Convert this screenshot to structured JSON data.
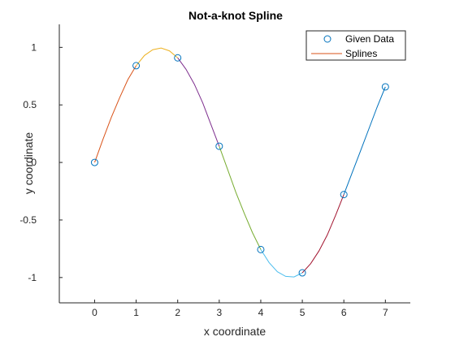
{
  "chart_data": {
    "type": "line",
    "title": "Not-a-knot Spline",
    "xlabel": "x coordinate",
    "ylabel": "y coordinate",
    "xlim": [
      -0.85,
      7.6
    ],
    "ylim": [
      -1.22,
      1.2
    ],
    "xticks": [
      0,
      1,
      2,
      3,
      4,
      5,
      6,
      7
    ],
    "yticks": [
      -1,
      -0.5,
      0,
      0.5,
      1
    ],
    "xtick_labels": [
      "0",
      "1",
      "2",
      "3",
      "4",
      "5",
      "6",
      "7"
    ],
    "ytick_labels": [
      "-1",
      "-0.5",
      "0",
      "0.5",
      "1"
    ],
    "grid": false,
    "legend": {
      "position": "top-right",
      "entries": [
        "Given Data",
        "Splines"
      ]
    },
    "given_data": {
      "name": "Given Data",
      "marker": "circle",
      "color": "#0072BD",
      "x": [
        0,
        1,
        2,
        3,
        4,
        5,
        6,
        7
      ],
      "y": [
        0,
        0.841,
        0.909,
        0.141,
        -0.757,
        -0.959,
        -0.279,
        0.657
      ]
    },
    "splines": {
      "name": "Splines",
      "legend_color": "#D95319",
      "segments": [
        {
          "color": "#D95319",
          "x": [
            0,
            0.2,
            0.4,
            0.6,
            0.8,
            1.0
          ],
          "y": [
            0,
            0.2,
            0.39,
            0.56,
            0.72,
            0.841
          ]
        },
        {
          "color": "#EDB120",
          "x": [
            1.0,
            1.2,
            1.4,
            1.6,
            1.8,
            2.0
          ],
          "y": [
            0.841,
            0.93,
            0.98,
            0.995,
            0.97,
            0.909
          ]
        },
        {
          "color": "#7E2F8E",
          "x": [
            2.0,
            2.2,
            2.4,
            2.6,
            2.8,
            3.0
          ],
          "y": [
            0.909,
            0.81,
            0.68,
            0.52,
            0.33,
            0.141
          ]
        },
        {
          "color": "#77AC30",
          "x": [
            3.0,
            3.2,
            3.4,
            3.6,
            3.8,
            4.0
          ],
          "y": [
            0.141,
            -0.06,
            -0.26,
            -0.44,
            -0.61,
            -0.757
          ]
        },
        {
          "color": "#4DBEEE",
          "x": [
            4.0,
            4.2,
            4.4,
            4.6,
            4.8,
            5.0
          ],
          "y": [
            -0.757,
            -0.87,
            -0.95,
            -0.99,
            -0.995,
            -0.959
          ]
        },
        {
          "color": "#A2142F",
          "x": [
            5.0,
            5.2,
            5.4,
            5.6,
            5.8,
            6.0
          ],
          "y": [
            -0.959,
            -0.88,
            -0.77,
            -0.63,
            -0.46,
            -0.279
          ]
        },
        {
          "color": "#0072BD",
          "x": [
            6.0,
            6.2,
            6.4,
            6.6,
            6.8,
            7.0
          ],
          "y": [
            -0.279,
            -0.09,
            0.1,
            0.29,
            0.48,
            0.657
          ]
        }
      ]
    }
  }
}
